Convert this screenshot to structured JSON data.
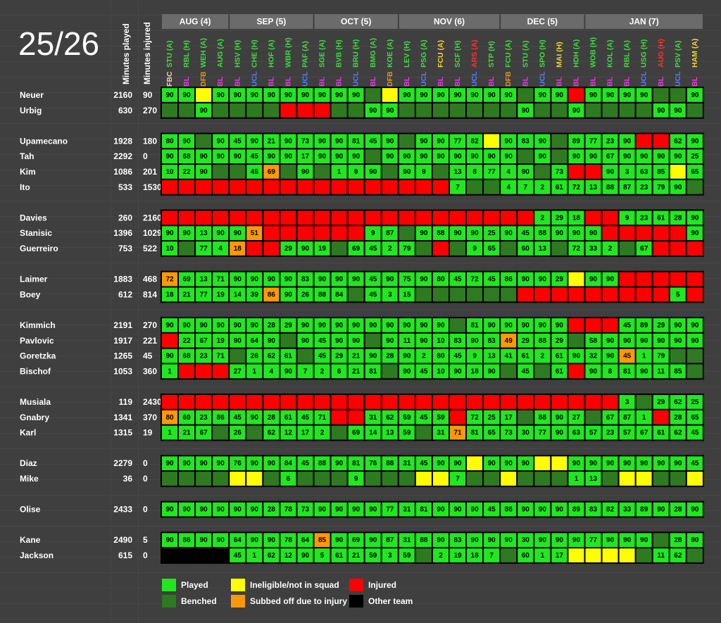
{
  "title": "25/26",
  "headers": {
    "played": "Minutes played",
    "injured": "Minutes injured"
  },
  "competition_colors": {
    "FBC": "#f0d0c0",
    "BL": "#e33fe0",
    "UCL": "#4f7fff",
    "DFB": "#e0952e"
  },
  "months": [
    {
      "label": "AUG (4)",
      "matches": [
        {
          "opponent": "STU (A)",
          "color": "#3fdc3f",
          "competition": "FBC"
        },
        {
          "opponent": "RBL (H)",
          "color": "#3fdc3f",
          "competition": "BL"
        },
        {
          "opponent": "WEH (A)",
          "color": "#3fdc3f",
          "competition": "DFB"
        },
        {
          "opponent": "AUG (A)",
          "color": "#3fdc3f",
          "competition": "BL"
        }
      ]
    },
    {
      "label": "SEP (5)",
      "matches": [
        {
          "opponent": "HSV (H)",
          "color": "#3fdc3f",
          "competition": "BL"
        },
        {
          "opponent": "CHE (H)",
          "color": "#3fdc3f",
          "competition": "UCL"
        },
        {
          "opponent": "HOF (A)",
          "color": "#3fdc3f",
          "competition": "BL"
        },
        {
          "opponent": "WBR (H)",
          "color": "#3fdc3f",
          "competition": "BL"
        },
        {
          "opponent": "PAF (A)",
          "color": "#3fdc3f",
          "competition": "UCL"
        }
      ]
    },
    {
      "label": "OCT (5)",
      "matches": [
        {
          "opponent": "SGE (A)",
          "color": "#3fdc3f",
          "competition": "BL"
        },
        {
          "opponent": "BVB (H)",
          "color": "#3fdc3f",
          "competition": "BL"
        },
        {
          "opponent": "BRU (H)",
          "color": "#3fdc3f",
          "competition": "UCL"
        },
        {
          "opponent": "BMG (A)",
          "color": "#3fdc3f",
          "competition": "BL"
        },
        {
          "opponent": "KOE (A)",
          "color": "#3fdc3f",
          "competition": "DFB"
        }
      ]
    },
    {
      "label": "NOV (6)",
      "matches": [
        {
          "opponent": "LEV (H)",
          "color": "#3fdc3f",
          "competition": "BL"
        },
        {
          "opponent": "PSG (A)",
          "color": "#3fdc3f",
          "competition": "UCL"
        },
        {
          "opponent": "FCU (A)",
          "color": "#f5d629",
          "competition": "BL"
        },
        {
          "opponent": "SCF (H)",
          "color": "#3fdc3f",
          "competition": "BL"
        },
        {
          "opponent": "ARS (A)",
          "color": "#ff3030",
          "competition": "UCL"
        },
        {
          "opponent": "STP (H)",
          "color": "#3fdc3f",
          "competition": "BL"
        }
      ]
    },
    {
      "label": "DEC (5)",
      "matches": [
        {
          "opponent": "FCU (A)",
          "color": "#3fdc3f",
          "competition": "DFB"
        },
        {
          "opponent": "STU (A)",
          "color": "#3fdc3f",
          "competition": "BL"
        },
        {
          "opponent": "SPO (H)",
          "color": "#3fdc3f",
          "competition": "UCL"
        },
        {
          "opponent": "MAI (H)",
          "color": "#f5d629",
          "competition": "BL"
        },
        {
          "opponent": "HDH (A)",
          "color": "#3fdc3f",
          "competition": "BL"
        }
      ]
    },
    {
      "label": "JAN (7)",
      "matches": [
        {
          "opponent": "WOB (H)",
          "color": "#3fdc3f",
          "competition": "BL"
        },
        {
          "opponent": "KOL (A)",
          "color": "#3fdc3f",
          "competition": "BL"
        },
        {
          "opponent": "RBL (A)",
          "color": "#3fdc3f",
          "competition": "BL"
        },
        {
          "opponent": "USG (H)",
          "color": "#3fdc3f",
          "competition": "UCL"
        },
        {
          "opponent": "AUG (H)",
          "color": "#ff3030",
          "competition": "BL"
        },
        {
          "opponent": "PSV (A)",
          "color": "#3fdc3f",
          "competition": "UCL"
        },
        {
          "opponent": "HAM (A)",
          "color": "#f5d629",
          "competition": "BL"
        }
      ]
    }
  ],
  "legend": {
    "p": {
      "label": "Played",
      "color": "#1fe81f"
    },
    "b": {
      "label": "Benched",
      "color": "#2e7a20"
    },
    "n": {
      "label": "Ineligible/not in squad",
      "color": "#ffff00"
    },
    "s": {
      "label": "Subbed off due to injury",
      "color": "#ff9900"
    },
    "i": {
      "label": "Injured",
      "color": "#ff0000"
    },
    "o": {
      "label": "Other team",
      "color": "#000000"
    }
  },
  "groups": [
    [
      {
        "name": "Neuer",
        "played": 2160,
        "injured": 90,
        "status": "ppnp ppppp pppbn pppppp pbppi ppppbbp",
        "minutes": [
          90,
          90,
          null,
          90,
          90,
          90,
          90,
          90,
          90,
          90,
          90,
          90,
          null,
          null,
          90,
          90,
          90,
          90,
          90,
          90,
          90,
          null,
          90,
          90,
          null,
          90,
          90,
          90,
          90,
          null,
          null,
          90
        ]
      },
      {
        "name": "Urbig",
        "played": 630,
        "injured": 270,
        "status": "bbpb bbbii ibbpp bbbbbb bpbbp bbbbppb",
        "minutes": [
          null,
          null,
          90,
          null,
          null,
          null,
          null,
          null,
          null,
          null,
          null,
          null,
          90,
          90,
          null,
          null,
          null,
          null,
          null,
          null,
          null,
          90,
          null,
          null,
          90,
          null,
          null,
          null,
          null,
          90,
          90,
          null
        ]
      }
    ],
    [
      {
        "name": "Upamecano",
        "played": 1928,
        "injured": 180,
        "status": "ppbp ppppp ppppp bppppn pppbp pppiipp",
        "minutes": [
          80,
          90,
          null,
          90,
          45,
          90,
          21,
          90,
          73,
          90,
          90,
          81,
          45,
          90,
          null,
          90,
          90,
          77,
          82,
          null,
          90,
          83,
          90,
          null,
          89,
          77,
          23,
          90,
          null,
          null,
          62,
          90
        ]
      },
      {
        "name": "Tah",
        "played": 2292,
        "injured": 0,
        "status": "pppp ppppp pppbp pppppp pbpbp ppppppp",
        "minutes": [
          90,
          68,
          90,
          90,
          90,
          45,
          90,
          90,
          17,
          90,
          90,
          90,
          null,
          90,
          90,
          90,
          90,
          90,
          90,
          90,
          90,
          null,
          90,
          null,
          90,
          90,
          67,
          90,
          90,
          90,
          90,
          25
        ]
      },
      {
        "name": "Kim",
        "played": 1086,
        "injured": 201,
        "status": "pppb bpsbp bpppb ppbppp ppbpi ippppnp",
        "minutes": [
          10,
          22,
          90,
          null,
          null,
          45,
          69,
          null,
          90,
          null,
          1,
          9,
          90,
          null,
          90,
          9,
          null,
          13,
          8,
          77,
          4,
          90,
          null,
          73,
          null,
          null,
          90,
          3,
          63,
          85,
          null,
          65
        ]
      },
      {
        "name": "Ito",
        "played": 533,
        "injured": 1530,
        "status": "iiii iiiii iiiii iiipbb ppppp ppppppb",
        "minutes": [
          null,
          null,
          null,
          null,
          null,
          null,
          null,
          null,
          null,
          null,
          null,
          null,
          null,
          null,
          null,
          null,
          null,
          7,
          null,
          null,
          4,
          7,
          2,
          61,
          72,
          13,
          88,
          87,
          23,
          79,
          90,
          null
        ]
      }
    ],
    [
      {
        "name": "Davies",
        "played": 260,
        "injured": 2160,
        "status": "iiii iiiii iiiii iiiiii iippp iippppp",
        "minutes": [
          null,
          null,
          null,
          null,
          null,
          null,
          null,
          null,
          null,
          null,
          null,
          null,
          null,
          null,
          null,
          null,
          null,
          null,
          null,
          null,
          null,
          null,
          2,
          29,
          18,
          null,
          null,
          9,
          23,
          61,
          28,
          90
        ]
      },
      {
        "name": "Stanisic",
        "played": 1396,
        "injured": 1029,
        "status": "pppp psiii iiipp bppppp ppppp piiiiip",
        "minutes": [
          90,
          90,
          13,
          90,
          90,
          51,
          null,
          null,
          null,
          null,
          null,
          null,
          9,
          87,
          null,
          90,
          88,
          90,
          90,
          25,
          90,
          45,
          88,
          90,
          90,
          90,
          null,
          null,
          null,
          null,
          null,
          90
        ]
      },
      {
        "name": "Guerreiro",
        "played": 753,
        "injured": 522,
        "status": "pbpp siipp pbppp pbibpp bppbp ppbpiii",
        "minutes": [
          10,
          null,
          77,
          4,
          18,
          null,
          null,
          29,
          90,
          19,
          null,
          69,
          45,
          2,
          79,
          null,
          null,
          null,
          9,
          65,
          null,
          60,
          13,
          null,
          72,
          33,
          2,
          null,
          67,
          null,
          null,
          null
        ]
      }
    ],
    [
      {
        "name": "Laimer",
        "played": 1883,
        "injured": 468,
        "status": "sppp ppppp ppppp pppppp ppppn ppiiiii",
        "minutes": [
          72,
          69,
          13,
          71,
          90,
          90,
          90,
          90,
          83,
          90,
          90,
          90,
          45,
          90,
          75,
          90,
          80,
          45,
          72,
          45,
          86,
          90,
          90,
          29,
          null,
          90,
          90,
          null,
          null,
          null,
          null,
          null
        ]
      },
      {
        "name": "Boey",
        "played": 612,
        "injured": 814,
        "status": "pppp ppspp ppbpp pbbbbb biiii iiiiipi",
        "minutes": [
          18,
          21,
          77,
          19,
          14,
          39,
          86,
          90,
          26,
          88,
          84,
          null,
          45,
          3,
          15,
          null,
          null,
          null,
          null,
          null,
          null,
          null,
          null,
          null,
          null,
          null,
          null,
          null,
          null,
          null,
          5,
          null
        ]
      }
    ],
    [
      {
        "name": "Kimmich",
        "played": 2191,
        "injured": 270,
        "status": "pppp ppppp ppppp pppbpp ppppi iippppp",
        "minutes": [
          90,
          90,
          90,
          90,
          90,
          90,
          28,
          29,
          90,
          90,
          90,
          90,
          90,
          90,
          90,
          90,
          90,
          null,
          81,
          90,
          90,
          90,
          90,
          90,
          null,
          null,
          null,
          45,
          89,
          29,
          90,
          90
        ]
      },
      {
        "name": "Pavlovic",
        "played": 1917,
        "injured": 221,
        "status": "ippp pppbp pppbp pppppp spppb ppppppp",
        "minutes": [
          null,
          22,
          67,
          19,
          90,
          64,
          90,
          null,
          90,
          45,
          90,
          90,
          null,
          90,
          11,
          90,
          10,
          83,
          90,
          83,
          49,
          29,
          88,
          29,
          null,
          58,
          90,
          90,
          90,
          90,
          90,
          90
        ]
      },
      {
        "name": "Goretzka",
        "played": 1265,
        "injured": 45,
        "status": "pppp bpppb ppppp pppppp ppppp ppsppbb",
        "minutes": [
          90,
          68,
          23,
          71,
          null,
          26,
          62,
          61,
          null,
          45,
          29,
          21,
          90,
          28,
          90,
          2,
          80,
          45,
          9,
          13,
          41,
          61,
          2,
          61,
          90,
          32,
          90,
          45,
          1,
          79,
          null,
          null
        ]
      },
      {
        "name": "Bischof",
        "played": 1053,
        "injured": 360,
        "status": "piii ppppp ppppb pppppp bpbpi ppppppb",
        "minutes": [
          1,
          null,
          null,
          null,
          27,
          1,
          4,
          90,
          7,
          2,
          6,
          21,
          81,
          null,
          90,
          45,
          10,
          90,
          18,
          90,
          null,
          45,
          null,
          61,
          null,
          90,
          8,
          81,
          90,
          11,
          85,
          null
        ]
      }
    ],
    [
      {
        "name": "Musiala",
        "played": 119,
        "injured": 2430,
        "status": "iiii iiiii iiiii iiiiii iiiii iipbppp",
        "minutes": [
          null,
          null,
          null,
          null,
          null,
          null,
          null,
          null,
          null,
          null,
          null,
          null,
          null,
          null,
          null,
          null,
          null,
          null,
          null,
          null,
          null,
          null,
          null,
          null,
          null,
          null,
          null,
          3,
          null,
          29,
          62,
          25
        ]
      },
      {
        "name": "Gnabry",
        "played": 1341,
        "injured": 370,
        "status": "sppp ppppp piipp pppipp pbppp bpppipp",
        "minutes": [
          80,
          69,
          23,
          86,
          45,
          90,
          28,
          61,
          45,
          71,
          null,
          null,
          31,
          62,
          59,
          45,
          59,
          null,
          72,
          25,
          17,
          null,
          88,
          90,
          27,
          null,
          67,
          87,
          1,
          null,
          28,
          65
        ]
      },
      {
        "name": "Karl",
        "played": 1315,
        "injured": 19,
        "status": "pppb pbppp pbppp pbpspp ppppp ppppppp",
        "minutes": [
          1,
          21,
          67,
          null,
          26,
          null,
          62,
          12,
          17,
          2,
          null,
          69,
          14,
          13,
          59,
          null,
          31,
          71,
          81,
          65,
          73,
          30,
          77,
          90,
          63,
          57,
          23,
          57,
          67,
          61,
          62,
          45
        ]
      }
    ],
    [
      {
        "name": "Diaz",
        "played": 2279,
        "injured": 0,
        "status": "pppp ppppp ppppp ppppnp ppnnp ppppppp",
        "minutes": [
          90,
          90,
          90,
          90,
          76,
          90,
          90,
          84,
          45,
          88,
          90,
          81,
          76,
          88,
          31,
          45,
          90,
          90,
          null,
          90,
          90,
          90,
          null,
          null,
          90,
          90,
          90,
          90,
          90,
          90,
          90,
          45
        ]
      },
      {
        "name": "Mike",
        "played": 36,
        "injured": 0,
        "status": "bbbb nnbpb bbpbb bnnpbb nbbbp pbnnbbn",
        "minutes": [
          null,
          null,
          null,
          null,
          null,
          null,
          null,
          6,
          null,
          null,
          null,
          9,
          null,
          null,
          null,
          null,
          null,
          7,
          null,
          null,
          null,
          null,
          null,
          null,
          1,
          13,
          null,
          null,
          null,
          null,
          null,
          null
        ]
      }
    ],
    [
      {
        "name": "Olise",
        "played": 2433,
        "injured": 0,
        "status": "pppp ppppp ppppp pppppp ppppp ppppppp",
        "minutes": [
          90,
          90,
          90,
          90,
          90,
          90,
          28,
          78,
          73,
          90,
          90,
          90,
          90,
          77,
          31,
          81,
          90,
          90,
          90,
          45,
          86,
          90,
          90,
          90,
          89,
          83,
          82,
          33,
          89,
          90,
          28,
          90
        ]
      }
    ],
    [
      {
        "name": "Kane",
        "played": 2490,
        "injured": 5,
        "status": "pppp ppppp spppp pppppp ppppp ppppbpp",
        "minutes": [
          90,
          86,
          90,
          90,
          64,
          90,
          90,
          78,
          64,
          85,
          90,
          69,
          90,
          87,
          31,
          88,
          90,
          83,
          90,
          90,
          90,
          30,
          90,
          90,
          90,
          77,
          90,
          90,
          90,
          null,
          28,
          90
        ]
      },
      {
        "name": "Jackson",
        "played": 615,
        "injured": 0,
        "status": "oooo ppppp ppppp pbpppp bpppn nnnbppb",
        "minutes": [
          null,
          null,
          null,
          null,
          45,
          1,
          62,
          12,
          90,
          5,
          61,
          21,
          59,
          3,
          59,
          null,
          2,
          19,
          18,
          7,
          null,
          60,
          1,
          17,
          null,
          null,
          null,
          null,
          null,
          11,
          62,
          null
        ]
      }
    ]
  ]
}
